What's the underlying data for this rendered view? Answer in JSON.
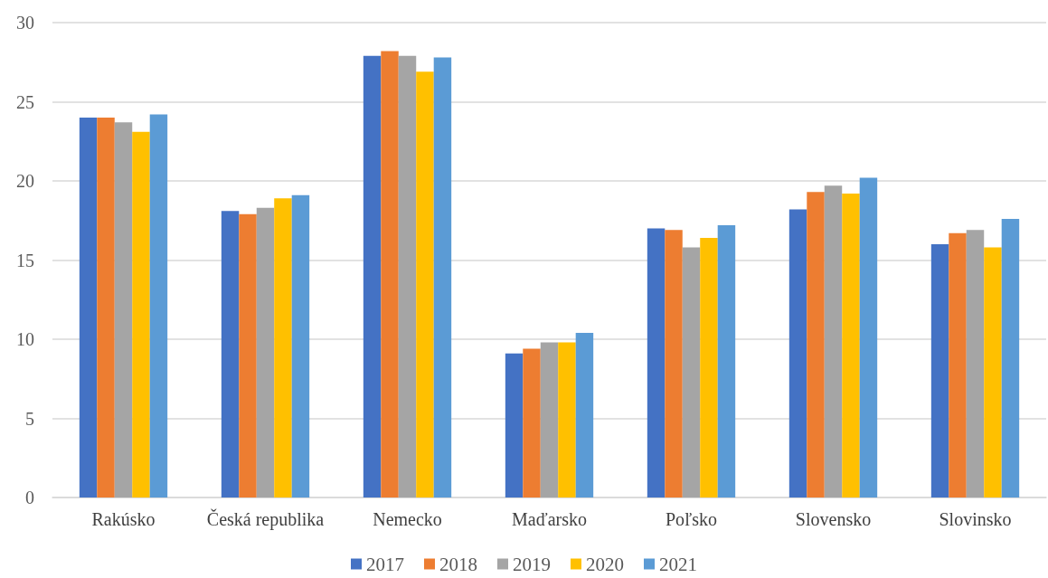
{
  "chart_data": {
    "type": "bar",
    "categories": [
      "Rakúsko",
      "Česká republika",
      "Nemecko",
      "Maďarsko",
      "Poľsko",
      "Slovensko",
      "Slovinsko"
    ],
    "series": [
      {
        "name": "2017",
        "color": "#4472c4",
        "values": [
          24.0,
          18.1,
          27.9,
          9.1,
          17.0,
          18.2,
          16.0
        ]
      },
      {
        "name": "2018",
        "color": "#ed7d31",
        "values": [
          24.0,
          17.9,
          28.2,
          9.4,
          16.9,
          19.3,
          16.7
        ]
      },
      {
        "name": "2019",
        "color": "#a5a5a5",
        "values": [
          23.7,
          18.3,
          27.9,
          9.8,
          15.8,
          19.7,
          16.9
        ]
      },
      {
        "name": "2020",
        "color": "#ffc000",
        "values": [
          23.1,
          18.9,
          26.9,
          9.8,
          16.4,
          19.2,
          15.8
        ]
      },
      {
        "name": "2021",
        "color": "#5b9bd5",
        "values": [
          24.2,
          19.1,
          27.8,
          10.4,
          17.2,
          20.2,
          17.6
        ]
      }
    ],
    "ylim": [
      0,
      30
    ],
    "yticks": [
      0,
      5,
      10,
      15,
      20,
      25,
      30
    ],
    "grid": "y",
    "legend": "bottom"
  }
}
